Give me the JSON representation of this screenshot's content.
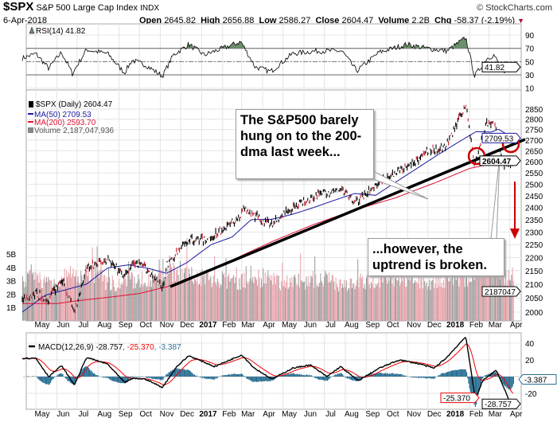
{
  "header": {
    "symbol": "$SPX",
    "name": "S&P 500 Large Cap Index",
    "exchange": "INDX",
    "brand": "© StockCharts.com",
    "date": "6-Apr-2018",
    "open_label": "Open",
    "open": "2645.82",
    "high_label": "High",
    "high": "2656.88",
    "low_label": "Low",
    "low": "2586.27",
    "close_label": "Close",
    "close": "2604.47",
    "volume_label": "Volume",
    "volume": "2.2B",
    "chg_label": "Chg",
    "chg": "-58.37 (-2.19%)"
  },
  "colors": {
    "price": "#000000",
    "ma50": "#1a1aa0",
    "ma200": "#dd1133",
    "volume_up": "#999999",
    "volume_down": "#e8a0a8",
    "rsi_fill": "#6b8f6b",
    "macd": "#000000",
    "signal": "#ee0000",
    "histogram": "#2b7094",
    "annotation": "#cc0000"
  },
  "legends": {
    "rsi": "RSI(14) 41.82",
    "price": "$SPX (Daily) 2604.47",
    "ma50": "MA(50) 2709.53",
    "ma200": "MA(200) 2593.70",
    "volume": "Volume 2,187,047,936",
    "macd": "MACD(12,26,9) -28.757",
    "macd_signal": ", -25.370",
    "macd_hist": ", -3.387"
  },
  "annotations": {
    "callout1": "The S&P500 barely hung on to the 200-dma last week...",
    "callout2": "...however, the uptrend is broken."
  },
  "chart_data": {
    "type": "line",
    "x_axis_labels": [
      "May",
      "Jun",
      "Jul",
      "Aug",
      "Sep",
      "Oct",
      "Nov",
      "Dec",
      "2017",
      "Feb",
      "Mar",
      "Apr",
      "May",
      "Jun",
      "Jul",
      "Aug",
      "Sep",
      "Oct",
      "Nov",
      "Dec",
      "2018",
      "Feb",
      "Mar",
      "Apr"
    ],
    "price_panel": {
      "scale": "log",
      "ylim": [
        2000,
        2850
      ],
      "y_ticks": [
        "2850",
        "2800",
        "2750",
        "2700",
        "2650",
        "2600",
        "2550",
        "2500",
        "2450",
        "2400",
        "2350",
        "2300",
        "2250",
        "2200",
        "2150",
        "2100",
        "2050",
        "2000"
      ],
      "volume_ticks": [
        "5B",
        "4B",
        "3B",
        "2B",
        "1B"
      ],
      "last_tags": {
        "ma50": "2709.53",
        "close": "2604.47",
        "volume": "2187047"
      },
      "close": [
        [
          "2016-04-11",
          2050
        ],
        [
          "2016-05-01",
          2065
        ],
        [
          "2016-05-19",
          2040
        ],
        [
          "2016-06-08",
          2119
        ],
        [
          "2016-06-27",
          2000
        ],
        [
          "2016-07-15",
          2162
        ],
        [
          "2016-08-15",
          2190
        ],
        [
          "2016-09-09",
          2128
        ],
        [
          "2016-09-22",
          2177
        ],
        [
          "2016-10-10",
          2163
        ],
        [
          "2016-11-04",
          2085
        ],
        [
          "2016-11-10",
          2167
        ],
        [
          "2016-12-13",
          2271
        ],
        [
          "2017-01-10",
          2268
        ],
        [
          "2017-02-28",
          2364
        ],
        [
          "2017-03-01",
          2396
        ],
        [
          "2017-04-13",
          2329
        ],
        [
          "2017-05-15",
          2402
        ],
        [
          "2017-06-19",
          2453
        ],
        [
          "2017-07-27",
          2475
        ],
        [
          "2017-08-18",
          2425
        ],
        [
          "2017-09-20",
          2508
        ],
        [
          "2017-10-31",
          2575
        ],
        [
          "2017-11-30",
          2647
        ],
        [
          "2017-12-29",
          2673
        ],
        [
          "2018-01-26",
          2872
        ],
        [
          "2018-02-08",
          2581
        ],
        [
          "2018-02-26",
          2779
        ],
        [
          "2018-03-09",
          2786
        ],
        [
          "2018-03-23",
          2588
        ],
        [
          "2018-04-02",
          2581
        ],
        [
          "2018-04-06",
          2604.47
        ]
      ],
      "ma50": [
        [
          "2016-04-11",
          2000
        ],
        [
          "2016-05-15",
          2060
        ],
        [
          "2016-06-15",
          2080
        ],
        [
          "2016-07-15",
          2100
        ],
        [
          "2016-08-15",
          2160
        ],
        [
          "2016-09-15",
          2172
        ],
        [
          "2016-10-15",
          2158
        ],
        [
          "2016-11-10",
          2140
        ],
        [
          "2016-12-10",
          2180
        ],
        [
          "2017-01-15",
          2250
        ],
        [
          "2017-02-15",
          2280
        ],
        [
          "2017-03-15",
          2350
        ],
        [
          "2017-04-15",
          2352
        ],
        [
          "2017-05-15",
          2372
        ],
        [
          "2017-06-15",
          2400
        ],
        [
          "2017-07-15",
          2430
        ],
        [
          "2017-08-15",
          2460
        ],
        [
          "2017-09-15",
          2452
        ],
        [
          "2017-10-15",
          2510
        ],
        [
          "2017-11-15",
          2570
        ],
        [
          "2017-12-15",
          2630
        ],
        [
          "2018-01-15",
          2690
        ],
        [
          "2018-02-10",
          2740
        ],
        [
          "2018-03-05",
          2738
        ],
        [
          "2018-03-15",
          2752
        ],
        [
          "2018-04-06",
          2709.53
        ]
      ],
      "ma200": [
        [
          "2016-04-11",
          2030
        ],
        [
          "2016-06-01",
          2030
        ],
        [
          "2016-07-01",
          2040
        ],
        [
          "2016-08-15",
          2052
        ],
        [
          "2016-10-01",
          2066
        ],
        [
          "2016-11-10",
          2090
        ],
        [
          "2016-12-15",
          2120
        ],
        [
          "2017-02-15",
          2190
        ],
        [
          "2017-04-15",
          2262
        ],
        [
          "2017-06-15",
          2330
        ],
        [
          "2017-08-15",
          2390
        ],
        [
          "2017-10-15",
          2442
        ],
        [
          "2017-12-15",
          2510
        ],
        [
          "2018-02-01",
          2570
        ],
        [
          "2018-03-01",
          2588
        ],
        [
          "2018-04-06",
          2593.7
        ]
      ],
      "volume_billions_monthly": [
        3.2,
        3.0,
        3.3,
        3.6,
        2.9,
        3.1,
        3.3,
        3.8,
        3.4,
        3.1,
        3.0,
        3.3,
        3.0,
        3.1,
        3.2,
        2.9,
        3.0,
        3.2,
        3.1,
        3.0,
        3.2,
        3.3,
        4.0,
        3.4,
        3.3
      ]
    },
    "rsi_panel": {
      "ylim": [
        10,
        95
      ],
      "y_ticks": [
        "90",
        "70",
        "50",
        "30",
        "10"
      ],
      "overbought": 70,
      "oversold": 30,
      "midline": 50,
      "last_tag": "41.82",
      "values": [
        [
          "2016-04-11",
          55
        ],
        [
          "2016-05-01",
          62
        ],
        [
          "2016-05-20",
          40
        ],
        [
          "2016-06-08",
          64
        ],
        [
          "2016-06-24",
          32
        ],
        [
          "2016-07-15",
          68
        ],
        [
          "2016-08-15",
          62
        ],
        [
          "2016-09-09",
          33
        ],
        [
          "2016-09-20",
          52
        ],
        [
          "2016-10-10",
          45
        ],
        [
          "2016-11-04",
          28
        ],
        [
          "2016-11-20",
          60
        ],
        [
          "2016-12-13",
          76
        ],
        [
          "2017-01-05",
          60
        ],
        [
          "2017-02-28",
          80
        ],
        [
          "2017-03-21",
          42
        ],
        [
          "2017-04-13",
          35
        ],
        [
          "2017-05-15",
          62
        ],
        [
          "2017-06-19",
          66
        ],
        [
          "2017-07-27",
          66
        ],
        [
          "2017-08-18",
          36
        ],
        [
          "2017-09-20",
          64
        ],
        [
          "2017-10-31",
          76
        ],
        [
          "2017-11-30",
          70
        ],
        [
          "2017-12-29",
          66
        ],
        [
          "2018-01-26",
          86
        ],
        [
          "2018-02-08",
          28
        ],
        [
          "2018-02-26",
          55
        ],
        [
          "2018-03-09",
          60
        ],
        [
          "2018-03-23",
          30
        ],
        [
          "2018-04-06",
          41.82
        ]
      ]
    },
    "macd_panel": {
      "ylim": [
        -35,
        50
      ],
      "y_ticks": [
        "40",
        "20",
        "-20"
      ],
      "last_tags": {
        "macd": "-28.757",
        "signal": "-25.370",
        "histogram": "-3.387"
      },
      "macd": [
        [
          "2016-04-11",
          22
        ],
        [
          "2016-05-01",
          22
        ],
        [
          "2016-05-20",
          0
        ],
        [
          "2016-06-08",
          13
        ],
        [
          "2016-06-27",
          -10
        ],
        [
          "2016-07-15",
          23
        ],
        [
          "2016-08-15",
          15
        ],
        [
          "2016-09-09",
          -7
        ],
        [
          "2016-09-22",
          -2
        ],
        [
          "2016-10-10",
          -3
        ],
        [
          "2016-11-04",
          -13
        ],
        [
          "2016-11-25",
          12
        ],
        [
          "2016-12-13",
          25
        ],
        [
          "2017-01-20",
          12
        ],
        [
          "2017-03-01",
          26
        ],
        [
          "2017-03-20",
          10
        ],
        [
          "2017-04-15",
          -3
        ],
        [
          "2017-05-15",
          10
        ],
        [
          "2017-06-10",
          14
        ],
        [
          "2017-07-05",
          0
        ],
        [
          "2017-07-25",
          12
        ],
        [
          "2017-08-20",
          -5
        ],
        [
          "2017-09-20",
          10
        ],
        [
          "2017-10-20",
          20
        ],
        [
          "2017-11-20",
          15
        ],
        [
          "2017-12-10",
          10
        ],
        [
          "2017-12-29",
          23
        ],
        [
          "2018-01-26",
          48
        ],
        [
          "2018-02-09",
          -27
        ],
        [
          "2018-02-20",
          -5
        ],
        [
          "2018-03-12",
          8
        ],
        [
          "2018-04-02",
          -32
        ],
        [
          "2018-04-06",
          -28.757
        ]
      ]
    }
  }
}
